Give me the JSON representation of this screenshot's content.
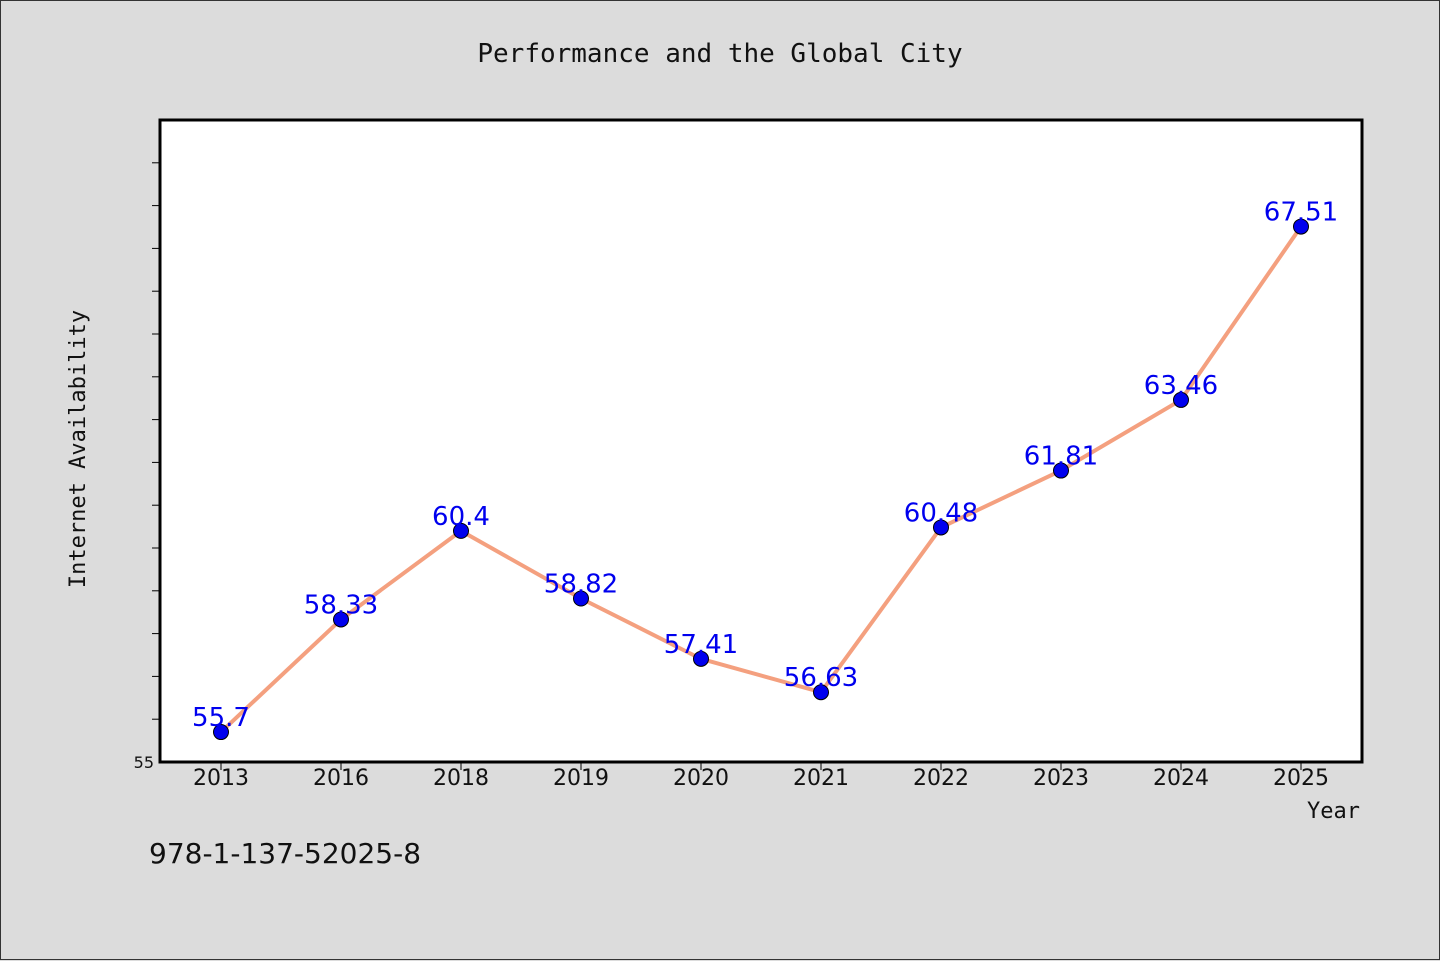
{
  "chart_data": {
    "type": "line",
    "title": "Performance and the Global City",
    "xlabel": "Year",
    "ylabel": "Internet Availability",
    "categories": [
      "2013",
      "2016",
      "2018",
      "2019",
      "2020",
      "2021",
      "2022",
      "2023",
      "2024",
      "2025"
    ],
    "values": [
      55.7,
      58.33,
      60.4,
      58.82,
      57.41,
      56.63,
      60.48,
      61.81,
      63.46,
      67.51
    ],
    "data_labels": [
      "55.7",
      "58.33",
      "60.4",
      "58.82",
      "57.41",
      "56.63",
      "60.48",
      "61.81",
      "63.46",
      "67.51"
    ],
    "ylim": [
      55,
      70
    ],
    "ytick_labels": [
      "55"
    ],
    "grid": false,
    "line_color": "#f4a07f",
    "marker_color": "#0000ee",
    "label_color": "#0000ee"
  },
  "footer": {
    "isbn": "978-1-137-52025-8"
  }
}
